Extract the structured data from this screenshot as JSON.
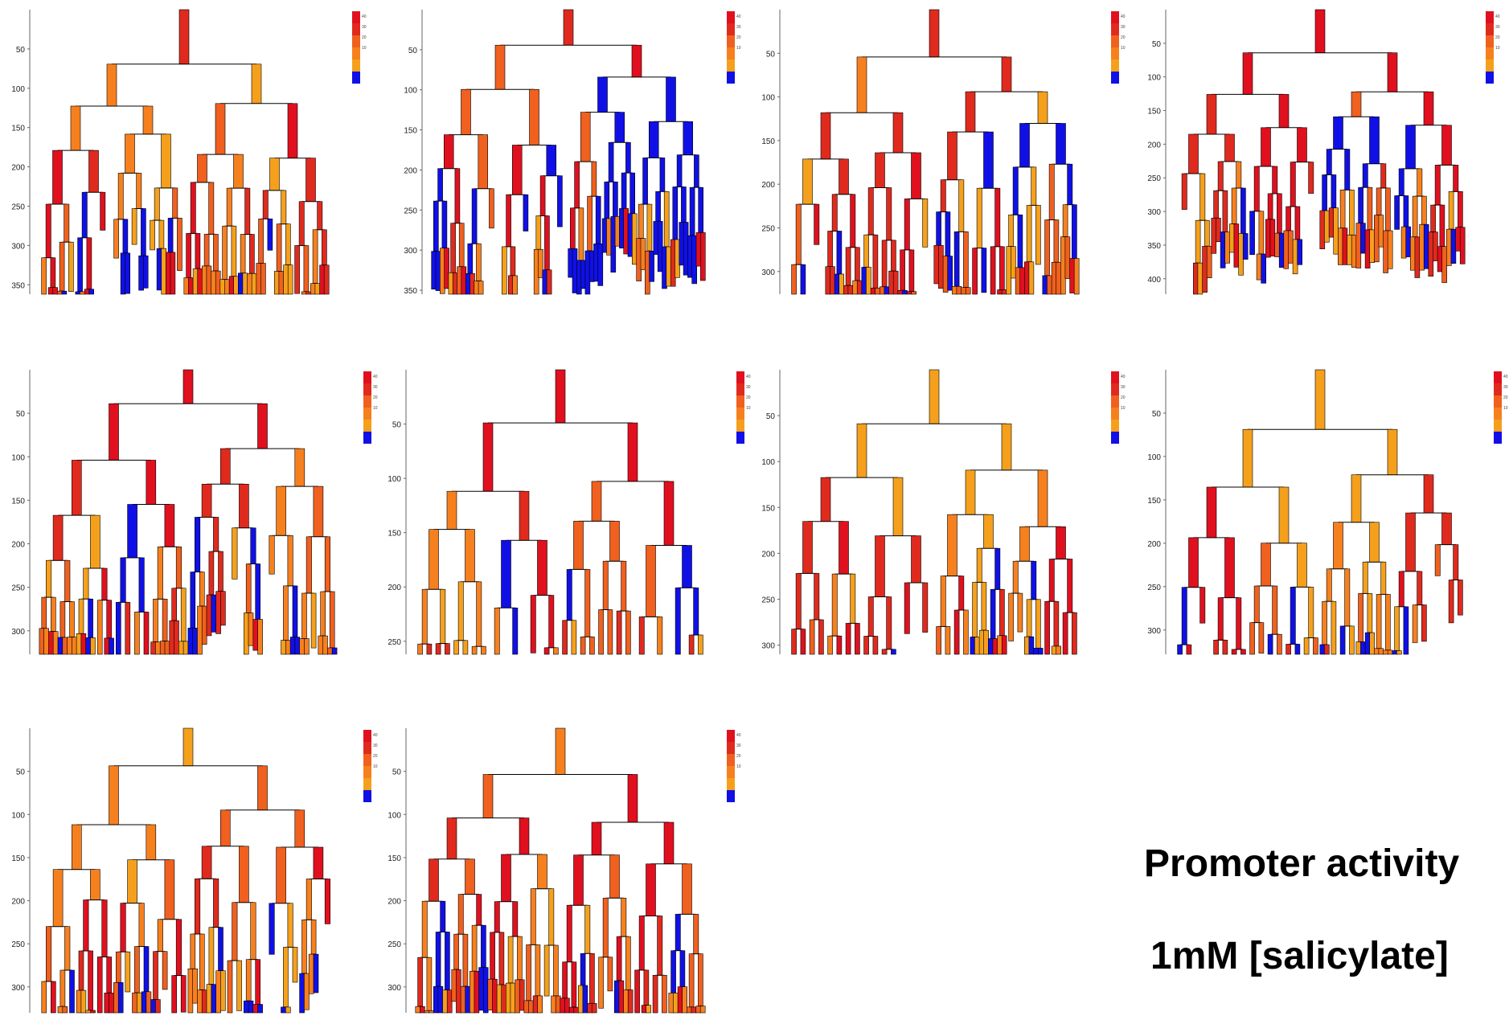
{
  "caption": {
    "line1": "Promoter activity",
    "line2": "1mM [salicylate]"
  },
  "colorscale": {
    "stops": [
      "#1010e6",
      "#f5a01c",
      "#f7801e",
      "#f0601e",
      "#e02a1e",
      "#e0101e"
    ],
    "tick_labels": [
      "10",
      "20",
      "30",
      "40"
    ]
  },
  "chart_data": [
    {
      "type": "other",
      "title": "",
      "ylabel": "",
      "yticks": [
        50,
        100,
        150,
        200,
        250,
        300,
        350
      ],
      "ylim": [
        0,
        362
      ]
    },
    {
      "type": "other",
      "title": "",
      "ylabel": "",
      "yticks": [
        50,
        100,
        150,
        200,
        250,
        300,
        350
      ],
      "ylim": [
        0,
        355
      ]
    },
    {
      "type": "other",
      "title": "",
      "ylabel": "",
      "yticks": [
        50,
        100,
        150,
        200,
        250,
        300
      ],
      "ylim": [
        0,
        326
      ]
    },
    {
      "type": "other",
      "title": "",
      "ylabel": "",
      "yticks": [
        50,
        100,
        150,
        200,
        250,
        300,
        350,
        400
      ],
      "ylim": [
        0,
        423
      ]
    },
    {
      "type": "other",
      "title": "",
      "ylabel": "",
      "yticks": [
        50,
        100,
        150,
        200,
        250,
        300
      ],
      "ylim": [
        0,
        327
      ]
    },
    {
      "type": "other",
      "title": "",
      "ylabel": "",
      "yticks": [
        50,
        100,
        150,
        200,
        250
      ],
      "ylim": [
        0,
        262
      ]
    },
    {
      "type": "other",
      "title": "",
      "ylabel": "",
      "yticks": [
        50,
        100,
        150,
        200,
        250,
        300
      ],
      "ylim": [
        0,
        310
      ]
    },
    {
      "type": "other",
      "title": "",
      "ylabel": "",
      "yticks": [
        50,
        100,
        150,
        200,
        250,
        300
      ],
      "ylim": [
        0,
        328
      ]
    },
    {
      "type": "other",
      "title": "",
      "ylabel": "",
      "yticks": [
        50,
        100,
        150,
        200,
        250,
        300
      ],
      "ylim": [
        0,
        330
      ]
    },
    {
      "type": "other",
      "title": "",
      "ylabel": "",
      "yticks": [
        50,
        100,
        150,
        200,
        250,
        300
      ],
      "ylim": [
        0,
        330
      ]
    }
  ]
}
